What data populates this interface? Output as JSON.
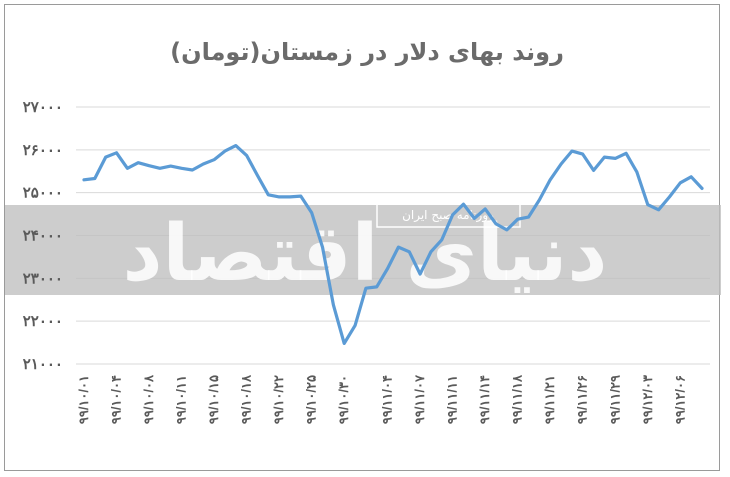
{
  "chart_data": {
    "type": "line",
    "title": "روند بهای دلار در زمستان(تومان)",
    "xlabel": "",
    "ylabel": "",
    "ylim": [
      21000,
      27000
    ],
    "yticks": [
      21000,
      22000,
      23000,
      24000,
      25000,
      26000,
      27000
    ],
    "ytick_labels": [
      "۲۱۰۰۰",
      "۲۲۰۰۰",
      "۲۳۰۰۰",
      "۲۴۰۰۰",
      "۲۵۰۰۰",
      "۲۶۰۰۰",
      "۲۷۰۰۰"
    ],
    "grid": true,
    "legend": "none",
    "series_color": "#5b9bd5",
    "x_tick_labels": [
      "۹۹/۱۰/۰۱",
      "۹۹/۱۰/۰۴",
      "۹۹/۱۰/۰۸",
      "۹۹/۱۰/۱۱",
      "۹۹/۱۰/۱۵",
      "۹۹/۱۰/۱۸",
      "۹۹/۱۰/۲۲",
      "۹۹/۱۰/۲۵",
      "۹۹/۱۰/۳۰",
      "۹۹/۱۱/۰۴",
      "۹۹/۱۱/۰۷",
      "۹۹/۱۱/۱۱",
      "۹۹/۱۱/۱۴",
      "۹۹/۱۱/۱۸",
      "۹۹/۱۱/۲۱",
      "۹۹/۱۱/۲۶",
      "۹۹/۱۱/۲۹",
      "۹۹/۱۲/۰۳",
      "۹۹/۱۲/۰۶"
    ],
    "values": [
      25300,
      25330,
      25830,
      25930,
      25570,
      25700,
      25630,
      25570,
      25620,
      25570,
      25530,
      25670,
      25770,
      25970,
      26100,
      25870,
      25400,
      24950,
      24900,
      24900,
      24920,
      24530,
      23730,
      22380,
      21480,
      21900,
      22770,
      22800,
      23230,
      23730,
      23620,
      23100,
      23620,
      23900,
      24480,
      24730,
      24400,
      24620,
      24270,
      24130,
      24380,
      24430,
      24830,
      25300,
      25670,
      25970,
      25900,
      25520,
      25830,
      25800,
      25920,
      25480,
      24720,
      24600,
      24900,
      25230,
      25370,
      25100
    ]
  },
  "watermark": {
    "brand": "دنیای اقتصاد",
    "caption": "روزنامه صبح ایران"
  }
}
